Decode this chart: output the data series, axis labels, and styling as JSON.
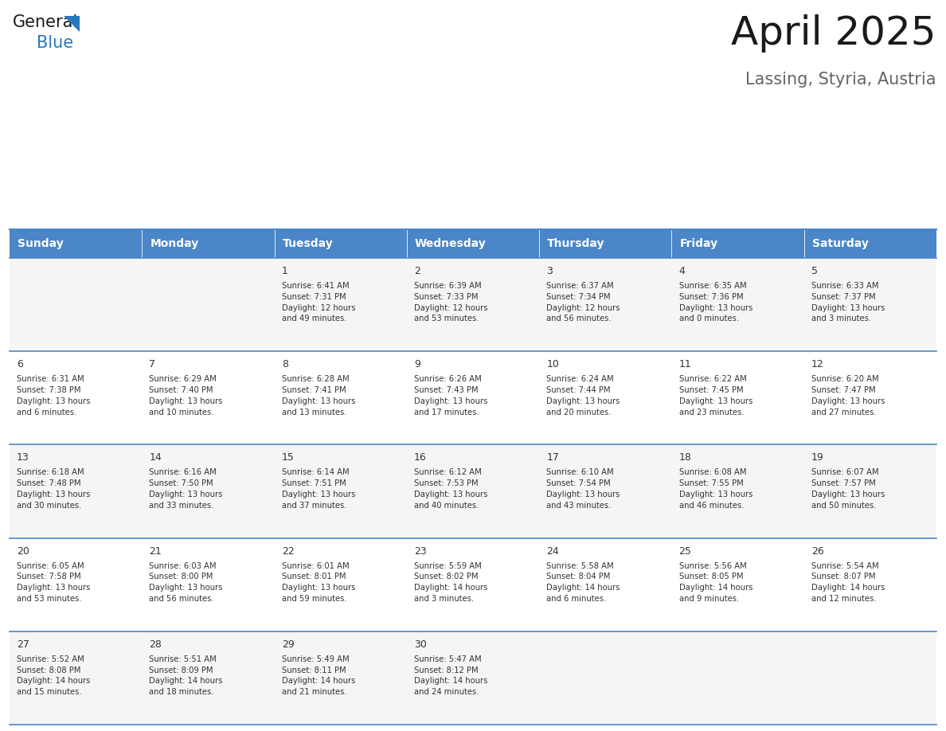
{
  "title": "April 2025",
  "subtitle": "Lassing, Styria, Austria",
  "header_bg_color": "#4a86c8",
  "header_text_color": "#ffffff",
  "days_of_week": [
    "Sunday",
    "Monday",
    "Tuesday",
    "Wednesday",
    "Thursday",
    "Friday",
    "Saturday"
  ],
  "row_bg_even": "#f5f5f5",
  "row_bg_odd": "#ffffff",
  "cell_border_color": "#4a86c8",
  "text_color": "#333333",
  "logo_general_color": "#1a1a1a",
  "logo_blue_color": "#2878c0",
  "title_color": "#1a1a1a",
  "subtitle_color": "#666666",
  "calendar": [
    [
      {
        "day": "",
        "sunrise": "",
        "sunset": "",
        "daylight": ""
      },
      {
        "day": "",
        "sunrise": "",
        "sunset": "",
        "daylight": ""
      },
      {
        "day": "1",
        "sunrise": "6:41 AM",
        "sunset": "7:31 PM",
        "daylight": "12 hours and 49 minutes."
      },
      {
        "day": "2",
        "sunrise": "6:39 AM",
        "sunset": "7:33 PM",
        "daylight": "12 hours and 53 minutes."
      },
      {
        "day": "3",
        "sunrise": "6:37 AM",
        "sunset": "7:34 PM",
        "daylight": "12 hours and 56 minutes."
      },
      {
        "day": "4",
        "sunrise": "6:35 AM",
        "sunset": "7:36 PM",
        "daylight": "13 hours and 0 minutes."
      },
      {
        "day": "5",
        "sunrise": "6:33 AM",
        "sunset": "7:37 PM",
        "daylight": "13 hours and 3 minutes."
      }
    ],
    [
      {
        "day": "6",
        "sunrise": "6:31 AM",
        "sunset": "7:38 PM",
        "daylight": "13 hours and 6 minutes."
      },
      {
        "day": "7",
        "sunrise": "6:29 AM",
        "sunset": "7:40 PM",
        "daylight": "13 hours and 10 minutes."
      },
      {
        "day": "8",
        "sunrise": "6:28 AM",
        "sunset": "7:41 PM",
        "daylight": "13 hours and 13 minutes."
      },
      {
        "day": "9",
        "sunrise": "6:26 AM",
        "sunset": "7:43 PM",
        "daylight": "13 hours and 17 minutes."
      },
      {
        "day": "10",
        "sunrise": "6:24 AM",
        "sunset": "7:44 PM",
        "daylight": "13 hours and 20 minutes."
      },
      {
        "day": "11",
        "sunrise": "6:22 AM",
        "sunset": "7:45 PM",
        "daylight": "13 hours and 23 minutes."
      },
      {
        "day": "12",
        "sunrise": "6:20 AM",
        "sunset": "7:47 PM",
        "daylight": "13 hours and 27 minutes."
      }
    ],
    [
      {
        "day": "13",
        "sunrise": "6:18 AM",
        "sunset": "7:48 PM",
        "daylight": "13 hours and 30 minutes."
      },
      {
        "day": "14",
        "sunrise": "6:16 AM",
        "sunset": "7:50 PM",
        "daylight": "13 hours and 33 minutes."
      },
      {
        "day": "15",
        "sunrise": "6:14 AM",
        "sunset": "7:51 PM",
        "daylight": "13 hours and 37 minutes."
      },
      {
        "day": "16",
        "sunrise": "6:12 AM",
        "sunset": "7:53 PM",
        "daylight": "13 hours and 40 minutes."
      },
      {
        "day": "17",
        "sunrise": "6:10 AM",
        "sunset": "7:54 PM",
        "daylight": "13 hours and 43 minutes."
      },
      {
        "day": "18",
        "sunrise": "6:08 AM",
        "sunset": "7:55 PM",
        "daylight": "13 hours and 46 minutes."
      },
      {
        "day": "19",
        "sunrise": "6:07 AM",
        "sunset": "7:57 PM",
        "daylight": "13 hours and 50 minutes."
      }
    ],
    [
      {
        "day": "20",
        "sunrise": "6:05 AM",
        "sunset": "7:58 PM",
        "daylight": "13 hours and 53 minutes."
      },
      {
        "day": "21",
        "sunrise": "6:03 AM",
        "sunset": "8:00 PM",
        "daylight": "13 hours and 56 minutes."
      },
      {
        "day": "22",
        "sunrise": "6:01 AM",
        "sunset": "8:01 PM",
        "daylight": "13 hours and 59 minutes."
      },
      {
        "day": "23",
        "sunrise": "5:59 AM",
        "sunset": "8:02 PM",
        "daylight": "14 hours and 3 minutes."
      },
      {
        "day": "24",
        "sunrise": "5:58 AM",
        "sunset": "8:04 PM",
        "daylight": "14 hours and 6 minutes."
      },
      {
        "day": "25",
        "sunrise": "5:56 AM",
        "sunset": "8:05 PM",
        "daylight": "14 hours and 9 minutes."
      },
      {
        "day": "26",
        "sunrise": "5:54 AM",
        "sunset": "8:07 PM",
        "daylight": "14 hours and 12 minutes."
      }
    ],
    [
      {
        "day": "27",
        "sunrise": "5:52 AM",
        "sunset": "8:08 PM",
        "daylight": "14 hours and 15 minutes."
      },
      {
        "day": "28",
        "sunrise": "5:51 AM",
        "sunset": "8:09 PM",
        "daylight": "14 hours and 18 minutes."
      },
      {
        "day": "29",
        "sunrise": "5:49 AM",
        "sunset": "8:11 PM",
        "daylight": "14 hours and 21 minutes."
      },
      {
        "day": "30",
        "sunrise": "5:47 AM",
        "sunset": "8:12 PM",
        "daylight": "14 hours and 24 minutes."
      },
      {
        "day": "",
        "sunrise": "",
        "sunset": "",
        "daylight": ""
      },
      {
        "day": "",
        "sunrise": "",
        "sunset": "",
        "daylight": ""
      },
      {
        "day": "",
        "sunrise": "",
        "sunset": "",
        "daylight": ""
      }
    ]
  ]
}
